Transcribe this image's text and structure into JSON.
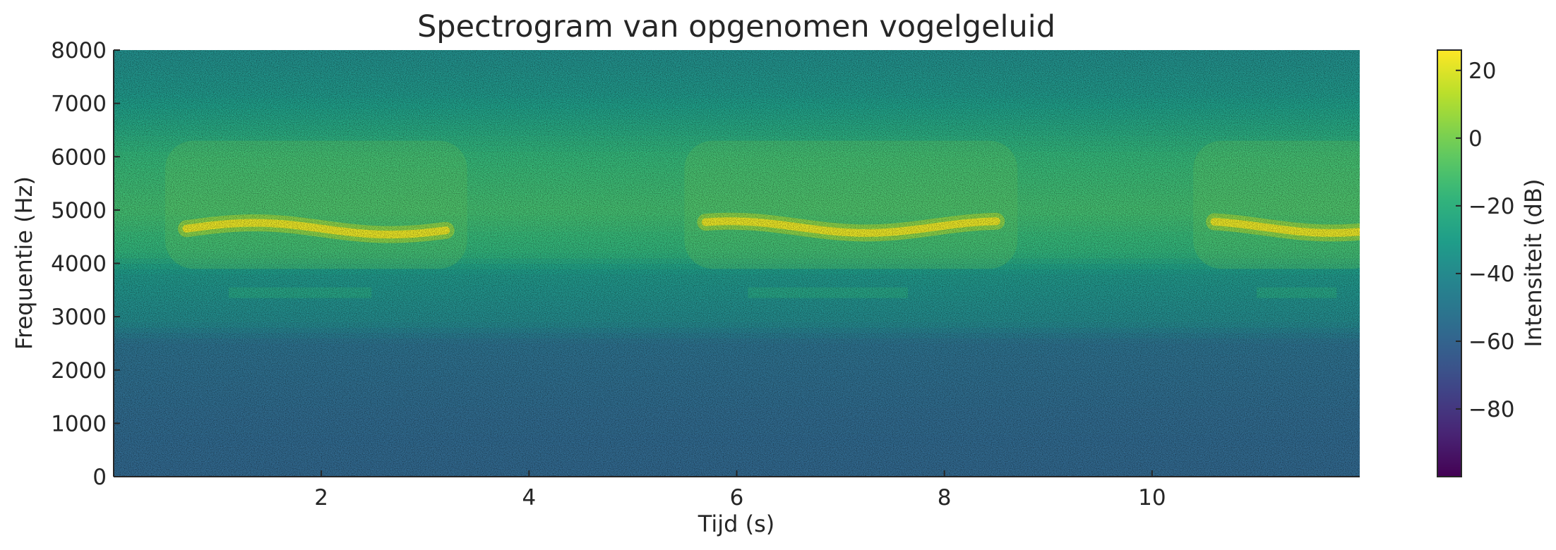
{
  "chart_data": {
    "type": "heatmap",
    "title": "Spectrogram van opgenomen vogelgeluid",
    "xlabel": "Tijd (s)",
    "ylabel": "Frequentie (Hz)",
    "xlim": [
      0,
      12
    ],
    "ylim": [
      0,
      8000
    ],
    "x_ticks": [
      2,
      4,
      6,
      8,
      10
    ],
    "y_ticks": [
      0,
      1000,
      2000,
      3000,
      4000,
      5000,
      6000,
      7000,
      8000
    ],
    "colorbar": {
      "label": "Intensiteit (dB)",
      "range": [
        -100,
        26
      ],
      "ticks": [
        -80,
        -60,
        -40,
        -20,
        0,
        20
      ],
      "colormap": "viridis"
    },
    "background_profile_db": [
      {
        "freq": 0,
        "db": -58
      },
      {
        "freq": 1000,
        "db": -57
      },
      {
        "freq": 2500,
        "db": -53
      },
      {
        "freq": 2900,
        "db": -40
      },
      {
        "freq": 3800,
        "db": -33
      },
      {
        "freq": 4200,
        "db": -18
      },
      {
        "freq": 5000,
        "db": -12
      },
      {
        "freq": 6000,
        "db": -16
      },
      {
        "freq": 6600,
        "db": -25
      },
      {
        "freq": 7200,
        "db": -33
      },
      {
        "freq": 8000,
        "db": -38
      }
    ],
    "calls": [
      {
        "start": 0.7,
        "end": 3.2,
        "freq_center": 4650,
        "peak_db": 22
      },
      {
        "start": 5.7,
        "end": 8.5,
        "freq_center": 4680,
        "peak_db": 22
      },
      {
        "start": 10.6,
        "end": 12.0,
        "freq_center": 4680,
        "peak_db": 22
      }
    ],
    "call_harmonic_freq": 3450,
    "call_harmonic_db": -22
  }
}
